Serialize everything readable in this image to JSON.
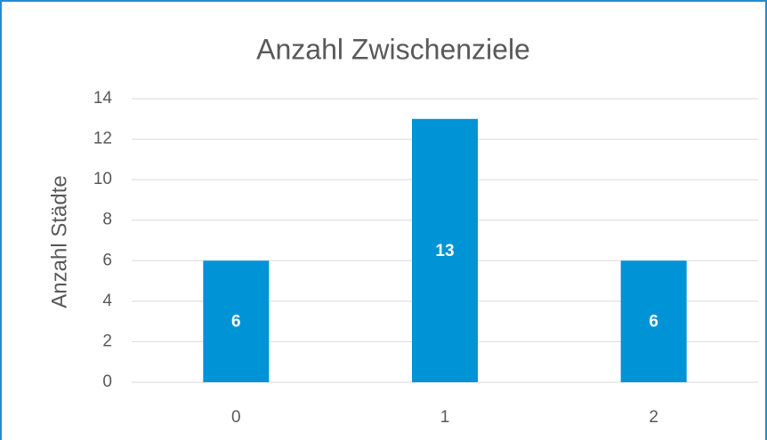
{
  "chart_data": {
    "type": "bar",
    "title": "Anzahl Zwischenziele",
    "ylabel": "Anzahl Städte",
    "categories": [
      "0",
      "1",
      "2"
    ],
    "values": [
      6,
      13,
      6
    ],
    "color": "#0093d6",
    "ylim": [
      0,
      14
    ],
    "yticks": [
      0,
      2,
      4,
      6,
      8,
      10,
      12,
      14
    ],
    "grid": true,
    "value_labels_inside": true
  }
}
